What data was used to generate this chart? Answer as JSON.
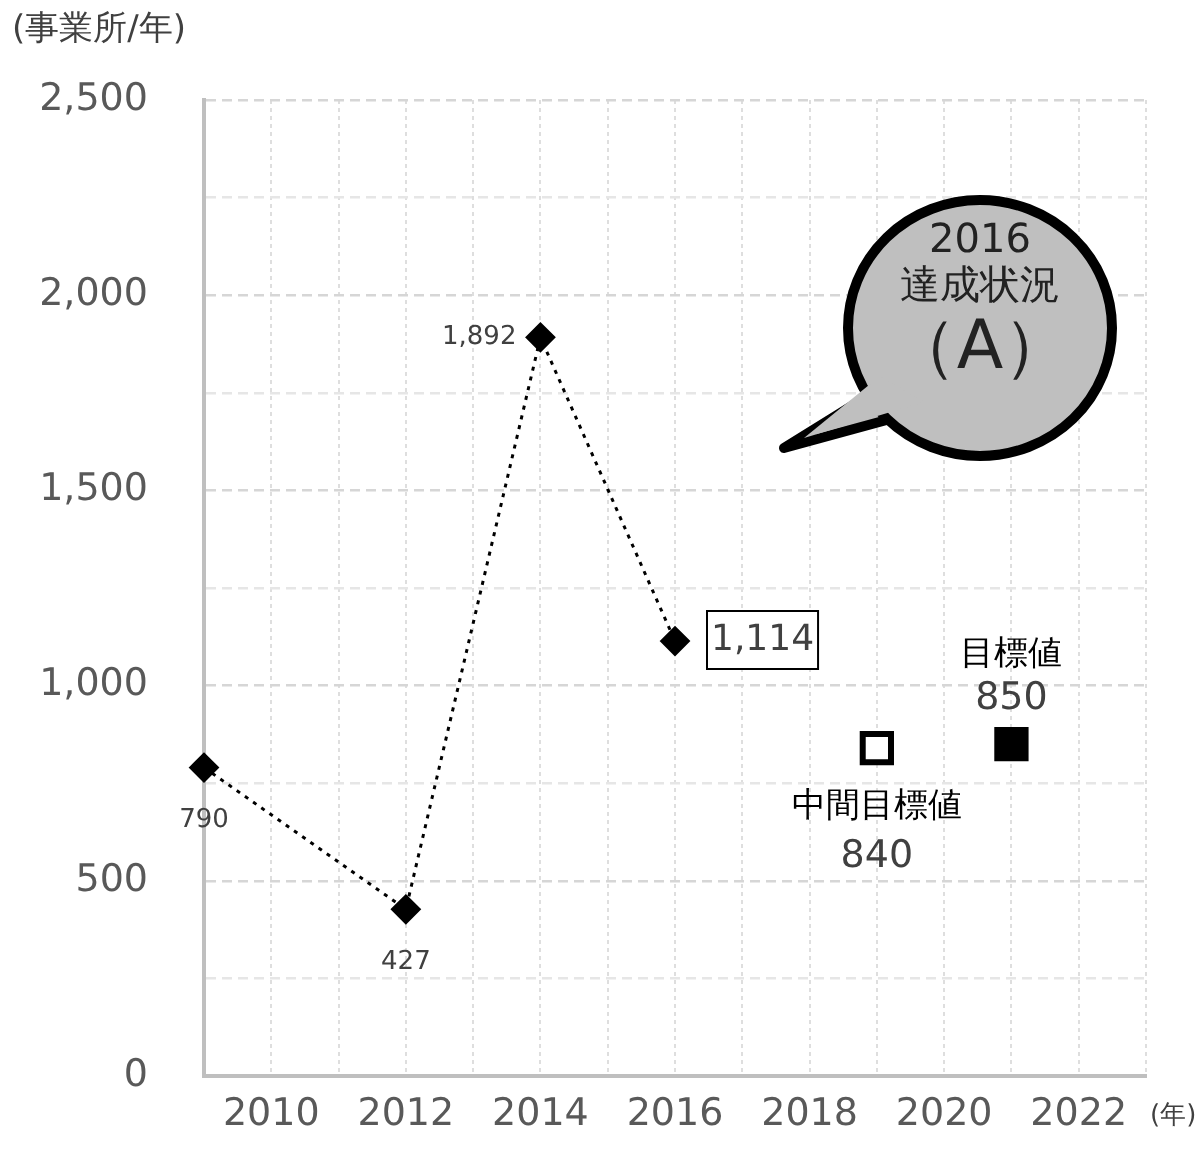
{
  "chart_data": {
    "type": "line",
    "ylabel": "(事業所/年)",
    "xlabel": "(年)",
    "xlim": [
      2009,
      2023
    ],
    "xticks": [
      {
        "value": 2010,
        "label": "2010"
      },
      {
        "value": 2011,
        "label": null
      },
      {
        "value": 2012,
        "label": "2012"
      },
      {
        "value": 2013,
        "label": null
      },
      {
        "value": 2014,
        "label": "2014"
      },
      {
        "value": 2015,
        "label": null
      },
      {
        "value": 2016,
        "label": "2016"
      },
      {
        "value": 2017,
        "label": null
      },
      {
        "value": 2018,
        "label": "2018"
      },
      {
        "value": 2019,
        "label": null
      },
      {
        "value": 2020,
        "label": "2020"
      },
      {
        "value": 2021,
        "label": null
      },
      {
        "value": 2022,
        "label": "2022"
      },
      {
        "value": 2023,
        "label": null
      }
    ],
    "ylim": [
      0,
      2500
    ],
    "yticks": [
      {
        "value": 0,
        "label": "0"
      },
      {
        "value": 250,
        "label": null
      },
      {
        "value": 500,
        "label": "500"
      },
      {
        "value": 750,
        "label": null
      },
      {
        "value": 1000,
        "label": "1,000"
      },
      {
        "value": 1250,
        "label": null
      },
      {
        "value": 1500,
        "label": "1,500"
      },
      {
        "value": 1750,
        "label": null
      },
      {
        "value": 2000,
        "label": "2,000"
      },
      {
        "value": 2250,
        "label": null
      },
      {
        "value": 2500,
        "label": "2,500"
      }
    ],
    "grid": true,
    "series": [
      {
        "type": "line",
        "color": "#000000",
        "marker": "diamond",
        "line_style": "dotted",
        "x": [
          2009,
          2012,
          2014,
          2016
        ],
        "values": [
          790,
          427,
          1892,
          1114
        ],
        "value_labels": [
          "790",
          "427",
          "1,892",
          "1,114"
        ]
      },
      {
        "type": "scatter",
        "name": "中間目標値",
        "color": "#000000",
        "marker": "square",
        "x": [
          2019
        ],
        "values": [
          840
        ],
        "value_labels": [
          "840"
        ]
      },
      {
        "type": "scatter",
        "name": "目標値",
        "color": "#000000",
        "marker": "square",
        "x": [
          2021
        ],
        "values": [
          850
        ],
        "value_labels": [
          "850"
        ]
      }
    ],
    "annotations": [
      "2016",
      "達成状況",
      "（A）"
    ]
  }
}
